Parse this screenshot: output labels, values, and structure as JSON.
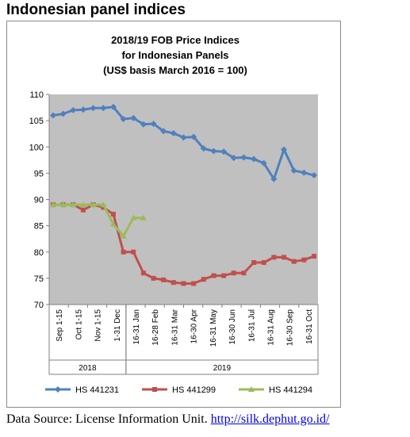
{
  "page": {
    "heading": "Indonesian panel indices",
    "source_label": "Data Source: License Information Unit.",
    "source_link": "http://silk.dephut.go.id/"
  },
  "chart_data": {
    "type": "line",
    "title_lines": [
      "2018/19 FOB Price Indices",
      "for Indonesian Panels",
      "(US$ basis March 2016 = 100)"
    ],
    "ylim": [
      70,
      110
    ],
    "yticks": [
      70,
      75,
      80,
      85,
      90,
      95,
      100,
      105,
      110
    ],
    "grid": "none",
    "legend_position": "bottom",
    "x_tick_labels": [
      "Sep 1-15",
      "Oct 1-15",
      "Nov 1-15",
      "1-31 Dec",
      "16-31 Jan",
      "16-28 Feb",
      "16-31 Mar",
      "16-30 Apr",
      "16-31 May",
      "16-30 Jun",
      "16-31 Jul",
      "16-31 Aug",
      "16-30 Sep",
      "16-31 Oct"
    ],
    "year_groups": [
      {
        "label": "2018",
        "start": 0,
        "end": 3
      },
      {
        "label": "2019",
        "start": 4,
        "end": 13
      }
    ],
    "series": [
      {
        "name": "HS 441231",
        "color": "#4f81bd",
        "marker": "diamond",
        "values": [
          106,
          106.3,
          107,
          107.1,
          107.4,
          107.4,
          107.6,
          105.3,
          105.5,
          104.3,
          104.4,
          103,
          102.6,
          101.8,
          101.9,
          99.7,
          99.2,
          99.1,
          97.9,
          98,
          97.7,
          96.9,
          93.9,
          99.5,
          95.5,
          95.1,
          94.6
        ]
      },
      {
        "name": "HS 441299",
        "color": "#c0504d",
        "marker": "square",
        "values": [
          89,
          89,
          89,
          88,
          89,
          88.5,
          87.2,
          80,
          80,
          76,
          75,
          74.7,
          74.2,
          74,
          74,
          74.8,
          75.5,
          75.5,
          76,
          76,
          78,
          78,
          79,
          79,
          78.2,
          78.5,
          79.2
        ]
      },
      {
        "name": "HS 441294",
        "color": "#9bbb59",
        "marker": "triangle",
        "values": [
          89,
          89,
          89,
          89,
          89,
          89,
          85.3,
          83,
          86.5,
          86.5,
          null,
          null,
          null,
          null,
          null,
          null,
          null,
          null,
          null,
          null,
          null,
          null,
          null,
          null,
          null,
          null,
          null
        ]
      }
    ]
  }
}
